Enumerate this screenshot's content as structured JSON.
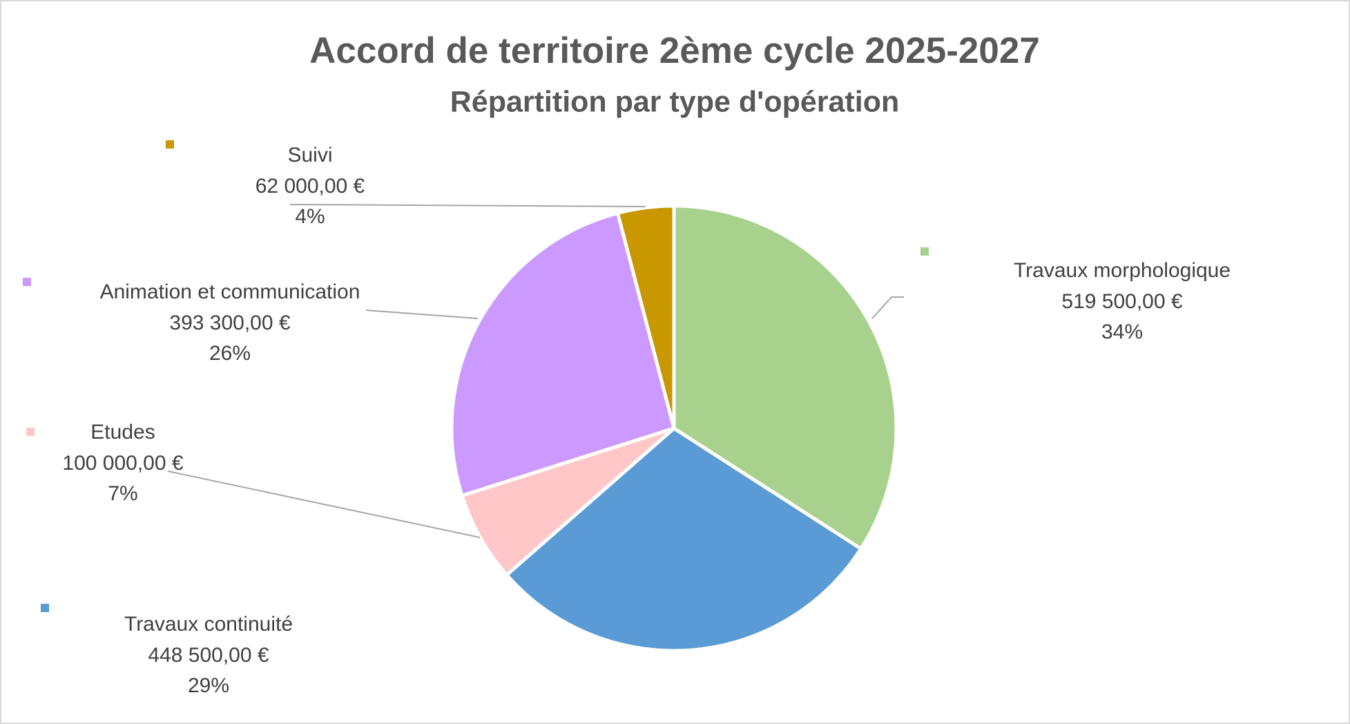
{
  "chart_data": {
    "type": "pie",
    "title": "Accord de territoire 2ème cycle 2025-2027",
    "subtitle": "Répartition par type d'opération",
    "categories": [
      "Travaux morphologique",
      "Travaux continuité",
      "Etudes",
      "Animation et communication",
      "Suivi"
    ],
    "values": [
      519500,
      448500,
      100000,
      393300,
      62000
    ],
    "value_labels": [
      "519 500,00 €",
      "448 500,00 €",
      "100 000,00 €",
      "393 300,00 €",
      "62 000,00 €"
    ],
    "percents": [
      34,
      29,
      7,
      26,
      4
    ],
    "percent_labels": [
      "34%",
      "29%",
      "7%",
      "26%",
      "4%"
    ],
    "colors": [
      "#a9d18e",
      "#5b9bd5",
      "#ffc7c7",
      "#cc99ff",
      "#c99700"
    ]
  }
}
